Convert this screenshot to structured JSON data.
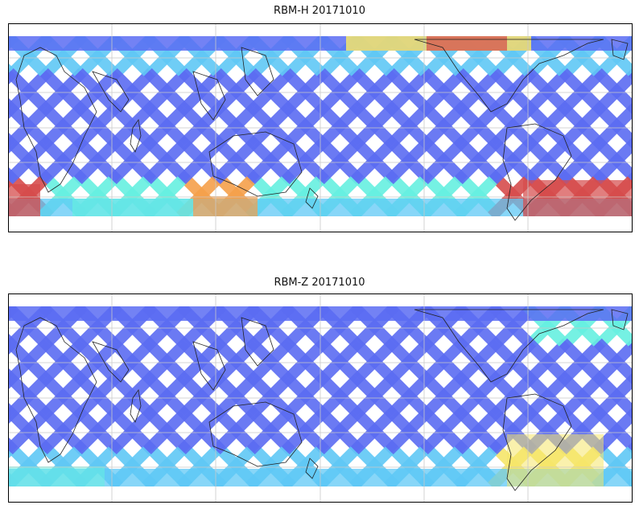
{
  "figure": {
    "panels": [
      {
        "title": "RBM-H 20171010",
        "projection": "plate-carree",
        "grid": true,
        "colormap": "jet"
      },
      {
        "title": "RBM-Z 20171010",
        "projection": "plate-carree",
        "grid": true,
        "colormap": "jet"
      }
    ],
    "colors": {
      "swath_low": "#5b6cf2",
      "swath_mid": "#5fc8f5",
      "swath_high_cyan": "#66f0e0",
      "swath_yellow": "#f5e66a",
      "swath_orange": "#f5a04a",
      "swath_red": "#d64c4c",
      "coast": "#222222",
      "grid": "#c8c8c8"
    }
  }
}
